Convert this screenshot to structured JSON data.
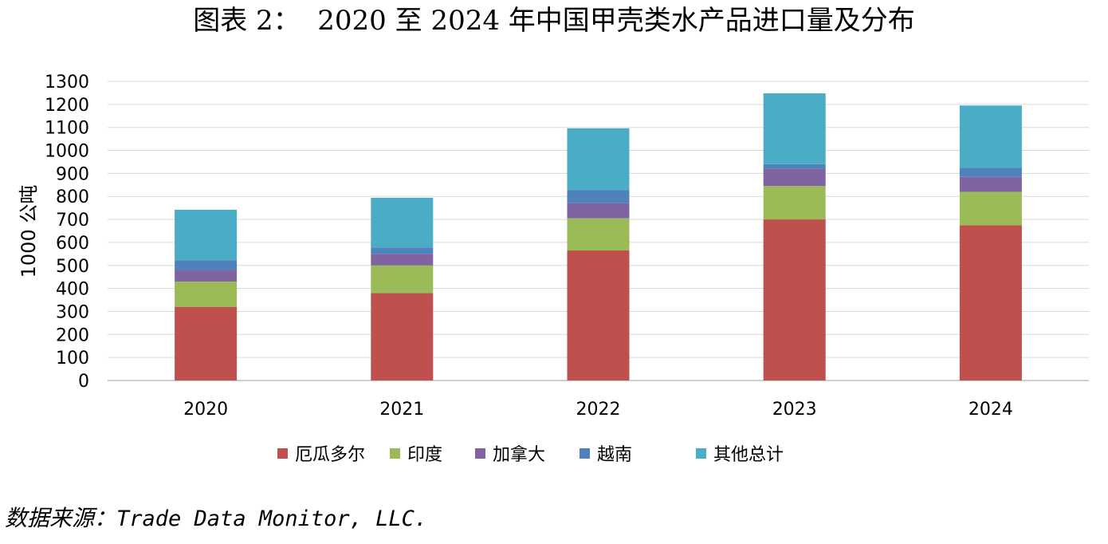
{
  "source": {
    "prefix": "数据来源：",
    "text": "Trade Data Monitor, LLC."
  },
  "chart_data": {
    "type": "bar",
    "stacked": true,
    "title": "图表 2：  2020 至 2024 年中国甲壳类水产品进口量及分布",
    "xlabel": "",
    "ylabel": "1000 公吨",
    "ylim": [
      0,
      1300
    ],
    "yticks": [
      0,
      100,
      200,
      300,
      400,
      500,
      600,
      700,
      800,
      900,
      1000,
      1100,
      1200,
      1300
    ],
    "grid": true,
    "legend_position": "bottom",
    "categories": [
      "2020",
      "2021",
      "2022",
      "2023",
      "2024"
    ],
    "series": [
      {
        "name": "厄瓜多尔",
        "color": "#c0504d",
        "values": [
          320,
          380,
          565,
          700,
          675
        ]
      },
      {
        "name": "印度",
        "color": "#9bbb59",
        "values": [
          110,
          120,
          140,
          145,
          145
        ]
      },
      {
        "name": "加拿大",
        "color": "#8064a2",
        "values": [
          50,
          50,
          65,
          75,
          65
        ]
      },
      {
        "name": "越南",
        "color": "#4f81bd",
        "values": [
          42,
          28,
          58,
          20,
          40
        ]
      },
      {
        "name": "其他总计",
        "color": "#4bacc6",
        "values": [
          220,
          216,
          268,
          308,
          270
        ]
      }
    ]
  }
}
